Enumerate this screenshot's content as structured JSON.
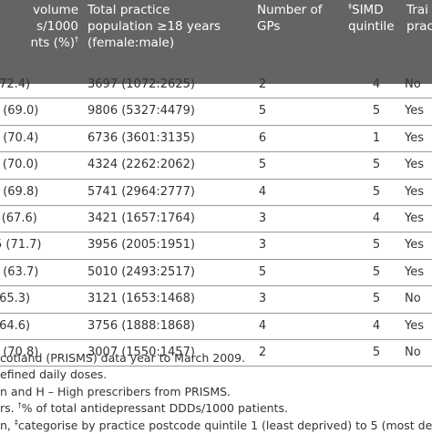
{
  "headers": {
    "col1_main": "volume\ns/1000\nnts (%)",
    "col1_mark": "†",
    "col2": "Total practice\npopulation ≥18 years\n(female:male)",
    "col3": "Number of\nGPs",
    "col4_mark": "‡",
    "col4_main": "SIMD\nquintile",
    "col5": "Trai\nprac"
  },
  "rows": [
    {
      "c1": "(72.4)",
      "c2": "3697 (1072:2625)",
      "c3": "2",
      "c4": "4",
      "c5": "No"
    },
    {
      "c1": ") (69.0)",
      "c2": "9806 (5327:4479)",
      "c3": "5",
      "c4": "5",
      "c5": "Yes"
    },
    {
      "c1": ") (70.4)",
      "c2": "6736 (3601:3135)",
      "c3": "6",
      "c4": "1",
      "c5": "Yes"
    },
    {
      "c1": "- (70.0)",
      "c2": "4324 (2262:2062)",
      "c3": "5",
      "c4": "5",
      "c5": "Yes"
    },
    {
      "c1": ") (69.8)",
      "c2": "5741 (2964:2777)",
      "c3": "4",
      "c4": "5",
      "c5": "Yes"
    },
    {
      "c1": "' (67.6)",
      "c2": "3421 (1657:1764)",
      "c3": "3",
      "c4": "4",
      "c5": "Yes"
    },
    {
      "c1": "5 (71.7)",
      "c2": "3956 (2005:1951)",
      "c3": "3",
      "c4": "5",
      "c5": "Yes"
    },
    {
      "c1": ") (63.7)",
      "c2": "5010 (2493:2517)",
      "c3": "5",
      "c4": "5",
      "c5": "Yes"
    },
    {
      "c1": "(65.3)",
      "c2": "3121 (1653:1468)",
      "c3": "3",
      "c4": "5",
      "c5": "No"
    },
    {
      "c1": "(64.6)",
      "c2": "3756 (1888:1868)",
      "c3": "4",
      "c4": "4",
      "c5": "Yes"
    },
    {
      "c1": ") (70.8)",
      "c2": "3007 (1550:1457)",
      "c3": "2",
      "c4": "5",
      "c5": "No"
    }
  ],
  "footnotes": {
    "f1": "cotland (PRISMS) data year to March 2009.",
    "f2": "efined daily doses.",
    "f3": "n and H – High prescribers from PRISMS.",
    "f4_a": "rs. ",
    "f4_mark": "†",
    "f4_b": "% of total antidepressant DDDs/1000 patients.",
    "f5_a": "n, ",
    "f5_mark": "‡",
    "f5_b": "categorise by practice postcode quintile 1 (least deprived) to 5 (most depriv"
  }
}
